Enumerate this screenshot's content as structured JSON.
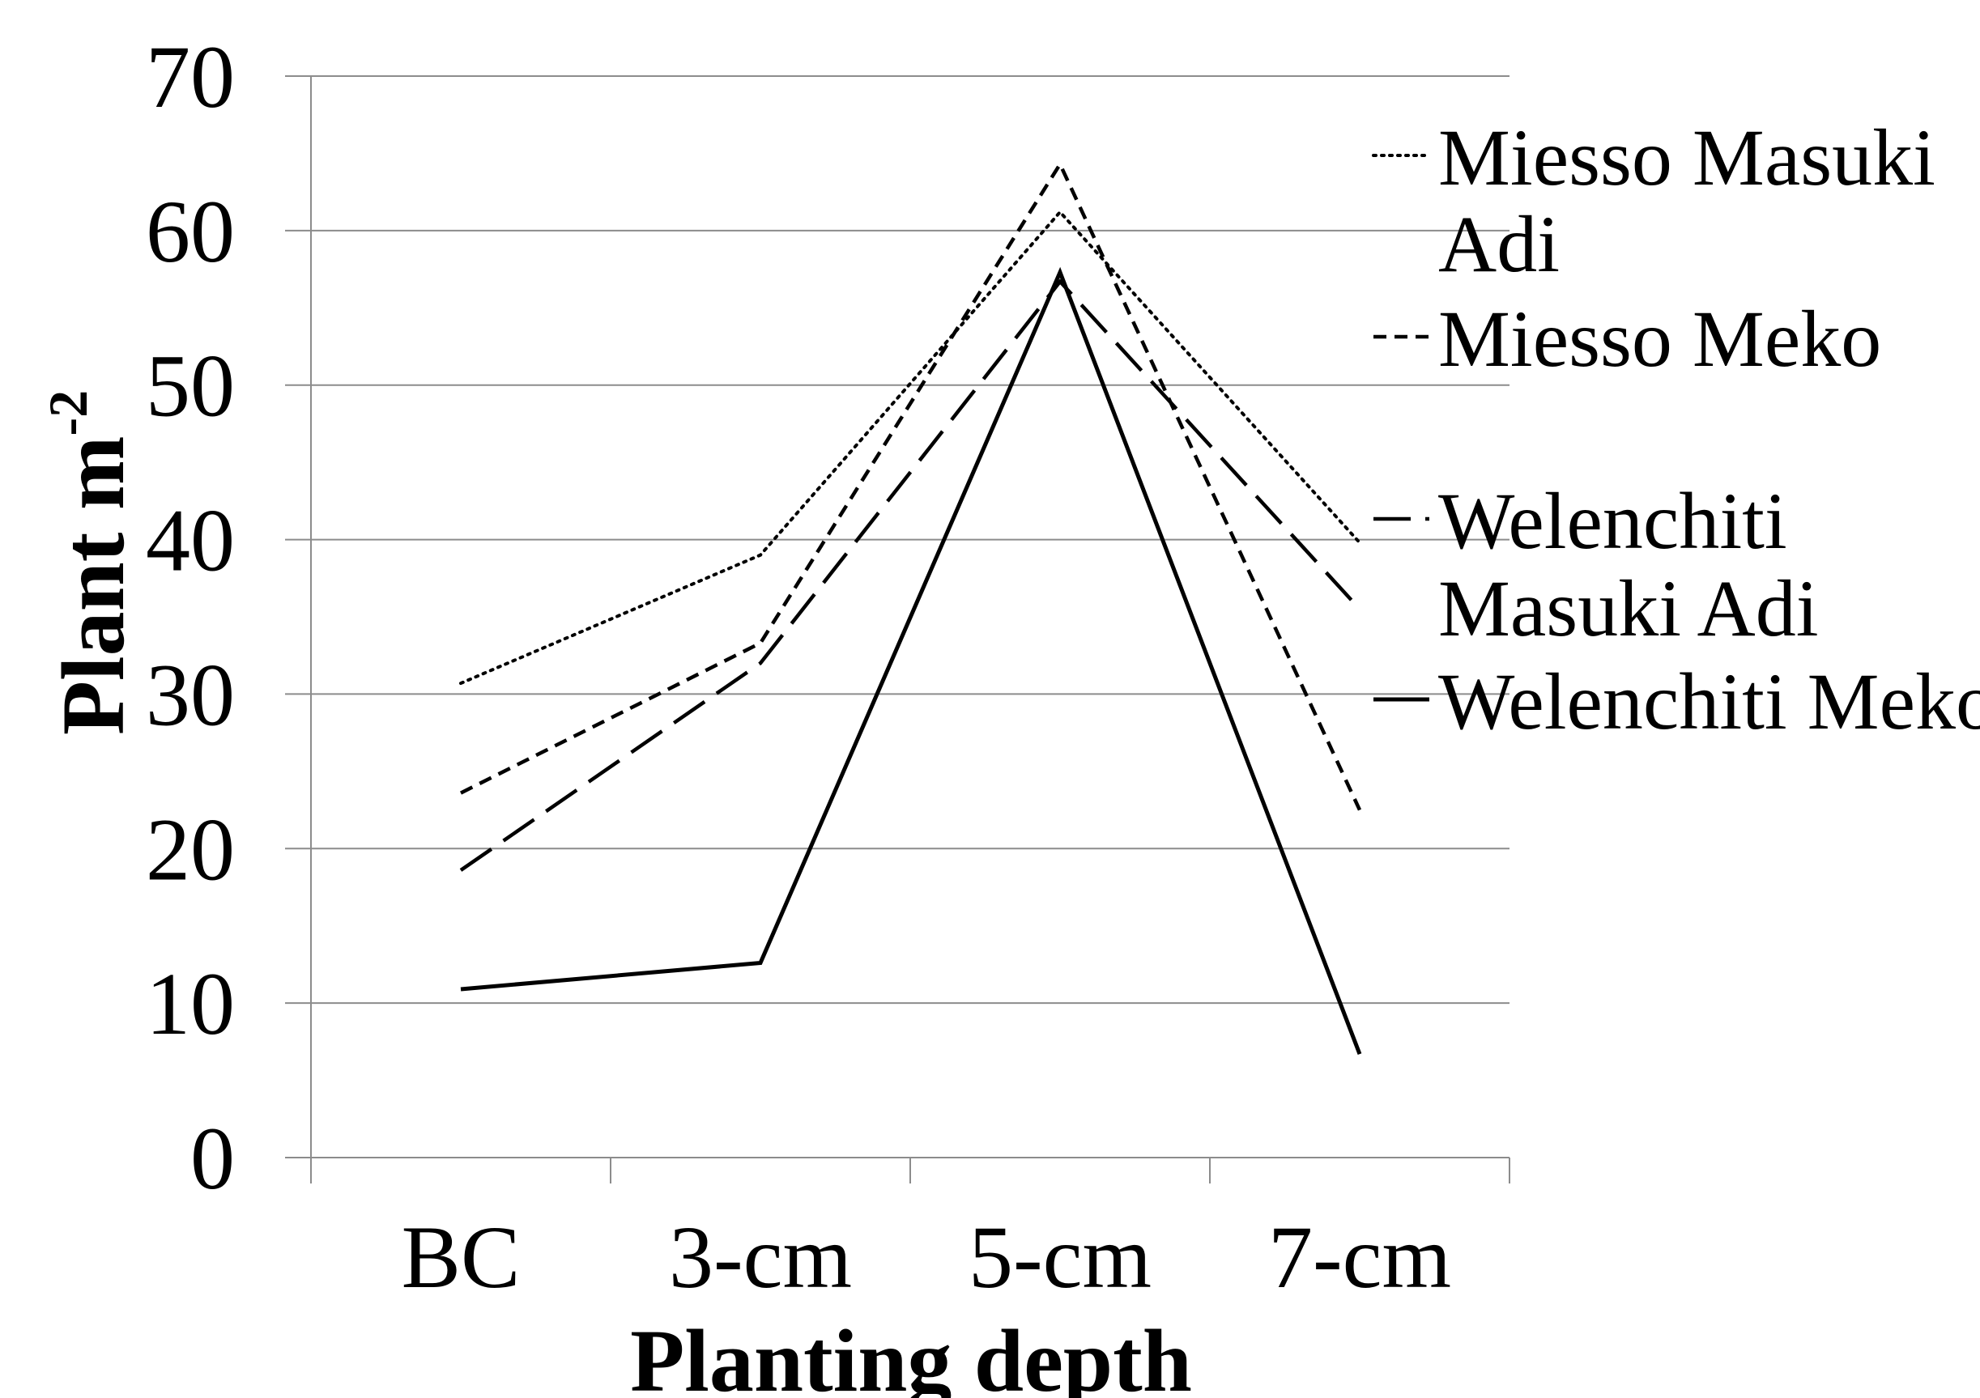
{
  "chart_data": {
    "type": "line",
    "title": "",
    "xlabel": "Planting depth",
    "ylabel": "Plant m",
    "ylabel_superscript": "-2",
    "categories": [
      "BC",
      "3-cm",
      "5-cm",
      "7-cm"
    ],
    "ylim": [
      0,
      70
    ],
    "yticks": [
      "0",
      "10",
      "20",
      "30",
      "40",
      "50",
      "60",
      "70"
    ],
    "grid": true,
    "legend_position": "right",
    "series": [
      {
        "name": "Miesso Masuki Adi",
        "name_lines": [
          "Miesso Masuki",
          "Adi"
        ],
        "dash": "dotted",
        "values": [
          30.7,
          39.0,
          61.2,
          39.8
        ]
      },
      {
        "name": "Miesso Meko",
        "name_lines": [
          "Miesso Meko"
        ],
        "dash": "short-dash",
        "values": [
          23.6,
          33.3,
          64.3,
          22.5
        ]
      },
      {
        "name": "Welenchiti Masuki Adi",
        "name_lines": [
          "Welenchiti",
          "Masuki Adi"
        ],
        "dash": "long-dash-dot",
        "values": [
          18.6,
          32.0,
          56.7,
          35.5
        ]
      },
      {
        "name": "Welenchiti Meko",
        "name_lines": [
          "Welenchiti Meko"
        ],
        "dash": "solid",
        "values": [
          10.9,
          12.6,
          57.3,
          6.7
        ]
      }
    ],
    "line_color": "#000000"
  }
}
